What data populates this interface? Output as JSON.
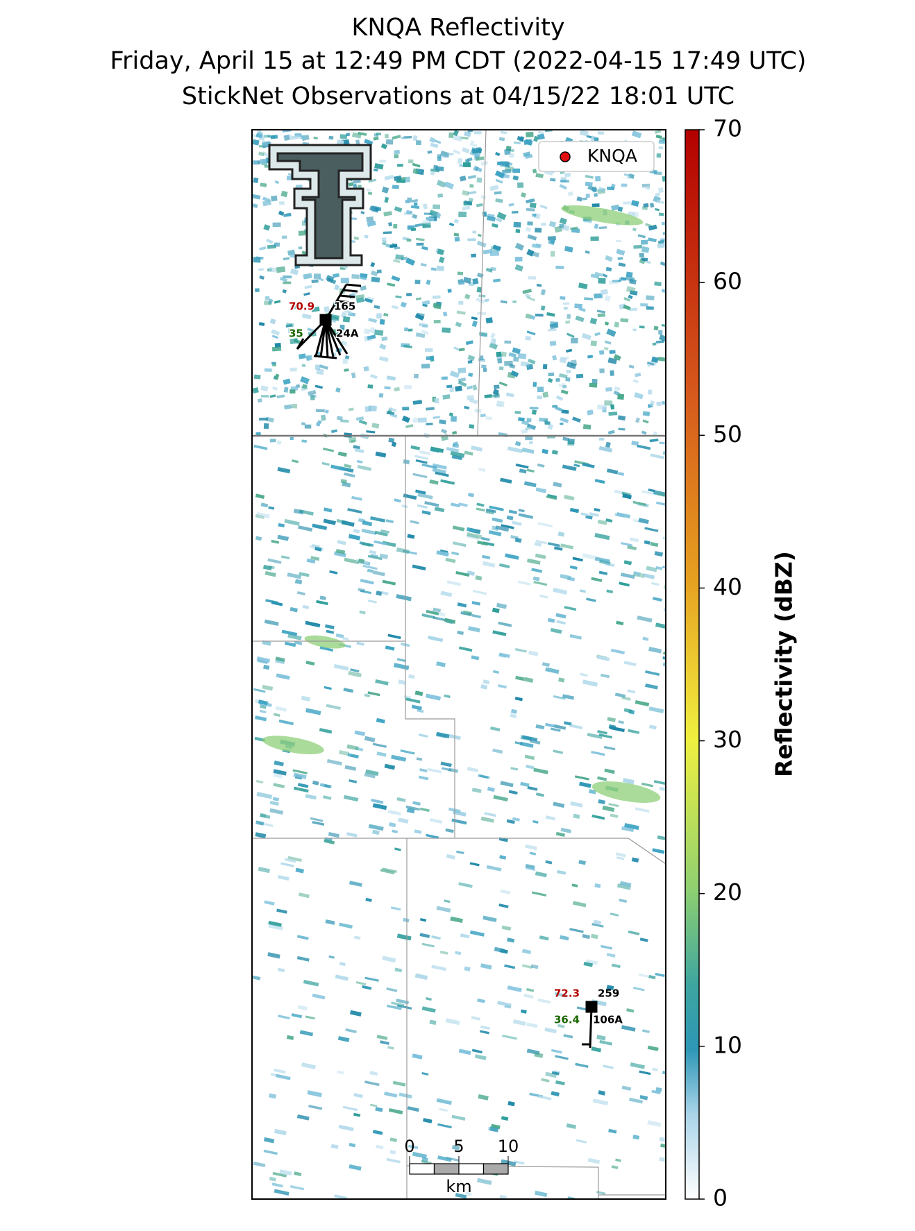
{
  "title": [
    "KNQA Reflectivity",
    "Friday, April 15 at 12:49 PM CDT (2022-04-15 17:49 UTC)",
    "StickNet Observations at 04/15/22 18:01 UTC"
  ],
  "legend": {
    "label": "KNQA",
    "color": "#e01010"
  },
  "colorbar": {
    "label": "Reflectivity (dBZ)",
    "lim": [
      0,
      70
    ],
    "ticks": [
      0,
      10,
      20,
      30,
      40,
      50,
      60,
      70
    ]
  },
  "stations": [
    {
      "temperature": "70.9",
      "direction": "165",
      "dewpoint": "35",
      "id": "24A"
    },
    {
      "temperature": "72.3",
      "direction": "259",
      "dewpoint": "36.4",
      "id": "106A"
    }
  ],
  "scalebar": {
    "ticks": [
      0,
      5,
      10
    ],
    "unit": "km"
  }
}
